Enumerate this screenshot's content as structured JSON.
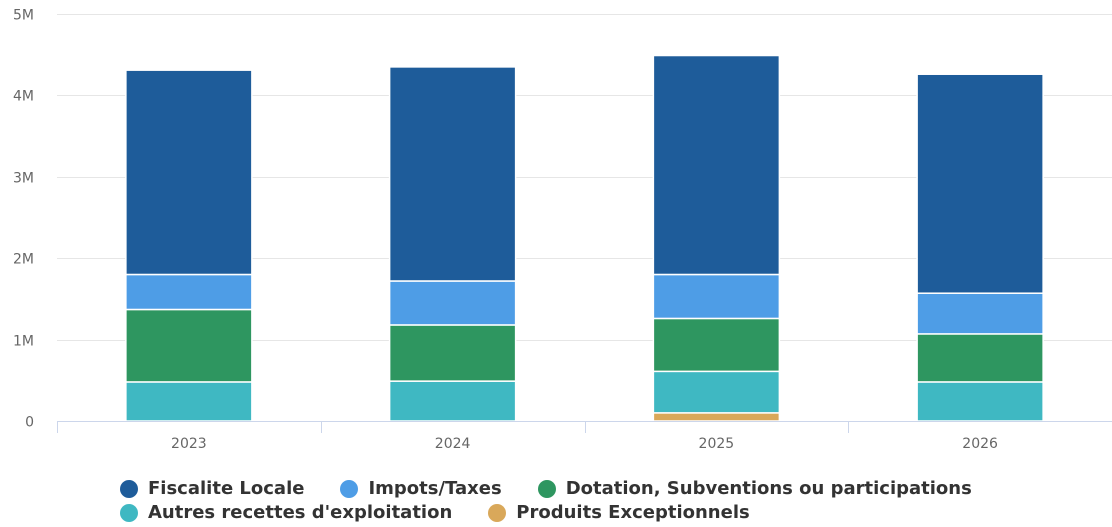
{
  "chart_data": {
    "type": "bar",
    "stacked": true,
    "categories": [
      "2023",
      "2024",
      "2025",
      "2026"
    ],
    "ylim": [
      0,
      5000000
    ],
    "yticks": [
      {
        "value": 0,
        "label": "0"
      },
      {
        "value": 1000000,
        "label": "1M"
      },
      {
        "value": 2000000,
        "label": "2M"
      },
      {
        "value": 3000000,
        "label": "3M"
      },
      {
        "value": 4000000,
        "label": "4M"
      },
      {
        "value": 5000000,
        "label": "5M"
      }
    ],
    "grid": true,
    "legend_position": "bottom",
    "series": [
      {
        "name": "Produits Exceptionnels",
        "color": "#d9a85a",
        "values": [
          0,
          0,
          100000,
          0
        ]
      },
      {
        "name": "Autres recettes d'exploitation",
        "color": "#3fb8c2",
        "values": [
          480000,
          490000,
          510000,
          480000
        ]
      },
      {
        "name": "Dotation, Subventions ou participations",
        "color": "#2e9660",
        "values": [
          890000,
          690000,
          650000,
          590000
        ]
      },
      {
        "name": "Impots/Taxes",
        "color": "#4e9de6",
        "values": [
          430000,
          540000,
          540000,
          500000
        ]
      },
      {
        "name": "Fiscalite Locale",
        "color": "#1e5c9a",
        "values": [
          2510000,
          2630000,
          2690000,
          2690000
        ]
      }
    ]
  },
  "legend": {
    "row1": [
      {
        "label": "Fiscalite Locale",
        "color": "#1e5c9a"
      },
      {
        "label": "Impots/Taxes",
        "color": "#4e9de6"
      },
      {
        "label": "Dotation, Subventions ou participations",
        "color": "#2e9660"
      }
    ],
    "row2": [
      {
        "label": "Autres recettes d'exploitation",
        "color": "#3fb8c2"
      },
      {
        "label": "Produits Exceptionnels",
        "color": "#d9a85a"
      }
    ]
  }
}
